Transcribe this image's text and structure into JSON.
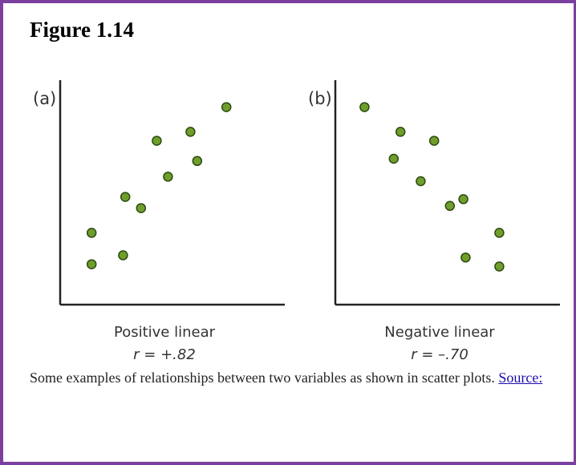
{
  "title": "Figure 1.14",
  "chart_data": [
    {
      "type": "scatter",
      "label": "(a)",
      "xlabel": "Positive linear",
      "annotation": "r = +.82",
      "x": [
        1.4,
        1.4,
        2.8,
        2.9,
        3.6,
        4.3,
        4.8,
        5.8,
        6.1,
        7.4
      ],
      "values": [
        3.2,
        1.8,
        2.2,
        4.8,
        4.3,
        7.3,
        5.7,
        7.7,
        6.4,
        8.8
      ],
      "xlim": [
        0,
        10
      ],
      "ylim": [
        0,
        10
      ],
      "color": "#6f9e2c"
    },
    {
      "type": "scatter",
      "label": "(b)",
      "xlabel": "Negative linear",
      "annotation": "r = –.70",
      "x": [
        1.3,
        2.9,
        2.6,
        4.4,
        3.8,
        5.1,
        5.7,
        7.3,
        5.8,
        7.3
      ],
      "values": [
        8.8,
        7.7,
        6.5,
        7.3,
        5.5,
        4.4,
        4.7,
        3.2,
        2.1,
        1.7
      ],
      "xlim": [
        0,
        10
      ],
      "ylim": [
        0,
        10
      ],
      "color": "#6f9e2c"
    }
  ],
  "caption": {
    "text": "Some examples of relationships between two variables as shown in scatter plots.",
    "link": "Source:"
  }
}
